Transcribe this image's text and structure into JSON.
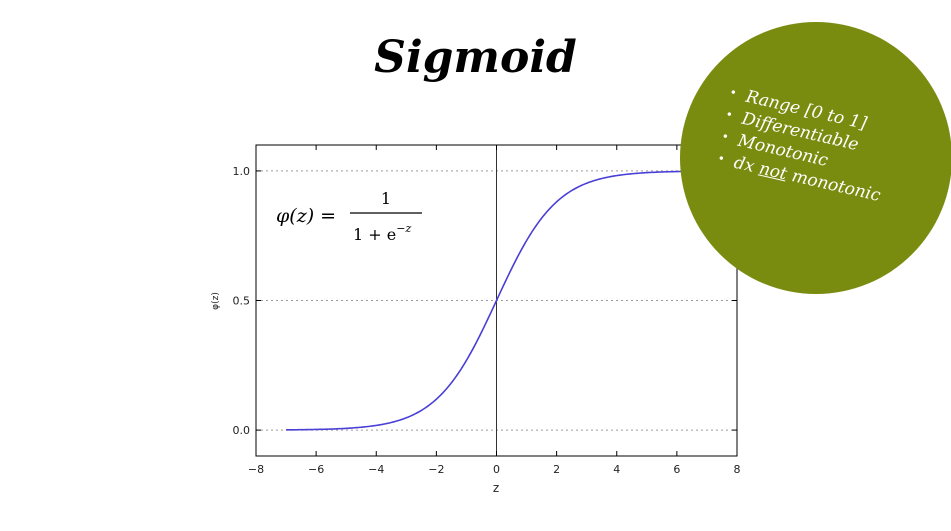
{
  "slide": {
    "title": "Sigmoid"
  },
  "badge": {
    "color": "#7a8c10",
    "bullets": [
      {
        "text": "Range [0 to 1]"
      },
      {
        "text": "Differentiable"
      },
      {
        "text": "Monotonic"
      },
      {
        "prefix": "dx ",
        "emphasis": "not",
        "suffix": " monotonic"
      }
    ]
  },
  "chart_data": {
    "type": "line",
    "formula": "φ(z) = 1 / (1 + e^−z)",
    "formula_lhs": "φ(z) =",
    "formula_num": "1",
    "formula_den": "1 + e",
    "formula_exp": "−z",
    "xlabel": "z",
    "ylabel": "φ(z)",
    "xlim": [
      -8,
      8
    ],
    "ylim": [
      -0.1,
      1.1
    ],
    "xticks": [
      -8,
      -6,
      -4,
      -2,
      0,
      2,
      4,
      6,
      8
    ],
    "xtick_labels": [
      "−8",
      "−6",
      "−4",
      "−2",
      "0",
      "2",
      "4",
      "6",
      "8"
    ],
    "yticks": [
      0.0,
      0.5,
      1.0
    ],
    "ytick_labels": [
      "0.0",
      "0.5",
      "1.0"
    ],
    "grid": "horizontal-dotted",
    "vline_x": 0,
    "series": [
      {
        "color": "#4a3fd6",
        "x_range": [
          -7,
          7
        ],
        "function": "sigmoid"
      }
    ]
  }
}
